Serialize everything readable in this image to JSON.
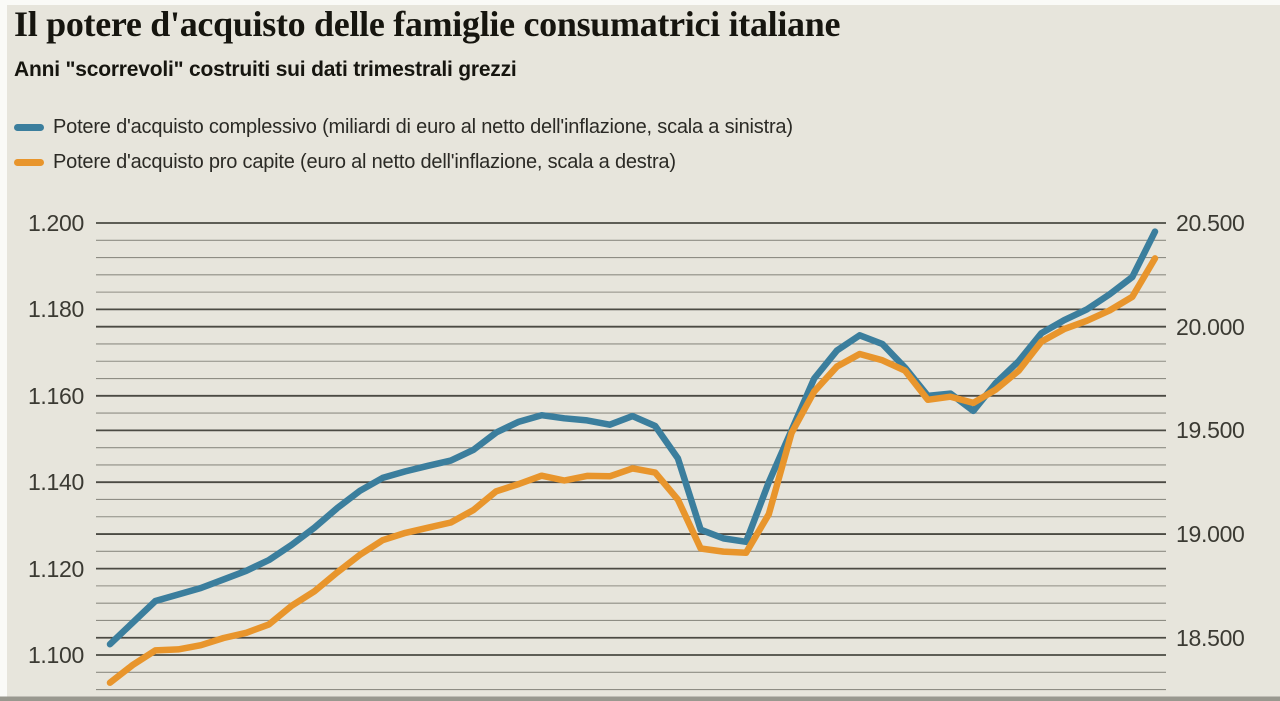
{
  "title": "Il potere d'acquisto delle famiglie consumatrici italiane",
  "subtitle": "Anni \"scorrevoli\" costruiti sui dati trimestrali grezzi",
  "legend": [
    {
      "label": "Potere d'acquisto complessivo (miliardi di euro al netto dell'inflazione, scala a sinistra)",
      "color": "#3b7e9d"
    },
    {
      "label": "Potere d'acquisto pro capite (euro al netto dell'inflazione, scala a destra)",
      "color": "#e8952c"
    }
  ],
  "colors": {
    "background": "#e7e5dc",
    "grid_major": "#4b4a43",
    "grid_minor": "#8e8d84",
    "bottom_band": "#99988f",
    "title_text": "#16150f",
    "axis_text": "#3b3a33",
    "series_blue": "#3b7e9d",
    "series_orange": "#e8952c"
  },
  "chart_data": {
    "type": "line",
    "title": "Il potere d'acquisto delle famiglie consumatrici italiane",
    "subtitle": "Anni \"scorrevoli\" costruiti sui dati trimestrali grezzi",
    "x_axis": {
      "label": "",
      "tick_labels": [],
      "note": "rolling years built on raw quarterly data; no x tick labels are shown",
      "points": 47
    },
    "left_axis": {
      "unit": "miliardi di euro",
      "tick_labels": [
        "1.200",
        "1.180",
        "1.160",
        "1.140",
        "1.120",
        "1.100"
      ],
      "tick_values": [
        1200,
        1180,
        1160,
        1140,
        1120,
        1100
      ],
      "range_top": 1200,
      "range_bottom": 1100
    },
    "right_axis": {
      "unit": "euro",
      "tick_labels": [
        "20.500",
        "20.000",
        "19.500",
        "19.000",
        "18.500"
      ],
      "tick_values": [
        20500,
        20000,
        19500,
        19000,
        18500
      ],
      "range_top": 20500,
      "range_bottom": 18500
    },
    "grid": {
      "horizontal_gridlines": true,
      "minor_steps_between_left_majors": 5
    },
    "legend_position": "top-left",
    "series": [
      {
        "name": "Potere d'acquisto complessivo",
        "axis": "left",
        "unit": "miliardi di euro",
        "color": "#3b7e9d",
        "values": [
          1102.5,
          1107.5,
          1112.5,
          1114,
          1115.5,
          1117.5,
          1119.5,
          1122,
          1125.5,
          1129.5,
          1134,
          1138,
          1141,
          1142.5,
          1143.8,
          1145,
          1147.5,
          1151.5,
          1154,
          1155.5,
          1154.8,
          1154.3,
          1153.3,
          1155.3,
          1153,
          1145.5,
          1129,
          1127,
          1126.2,
          1140,
          1152,
          1164,
          1170.5,
          1174,
          1172,
          1166.5,
          1160,
          1160.5,
          1156.5,
          1163,
          1168,
          1174.5,
          1177.5,
          1180,
          1183.5,
          1187.5,
          1198
        ]
      },
      {
        "name": "Potere d'acquisto pro capite",
        "axis": "right",
        "unit": "euro",
        "color": "#e8952c",
        "values": [
          18290,
          18375,
          18445,
          18450,
          18470,
          18505,
          18530,
          18570,
          18660,
          18730,
          18820,
          18905,
          18975,
          19010,
          19035,
          19060,
          19120,
          19210,
          19245,
          19285,
          19262,
          19284,
          19282,
          19320,
          19300,
          19170,
          18935,
          18920,
          18915,
          19100,
          19490,
          19690,
          19810,
          19870,
          19840,
          19790,
          19650,
          19665,
          19635,
          19700,
          19790,
          19930,
          19990,
          20030,
          20080,
          20145,
          20330
        ]
      }
    ]
  }
}
